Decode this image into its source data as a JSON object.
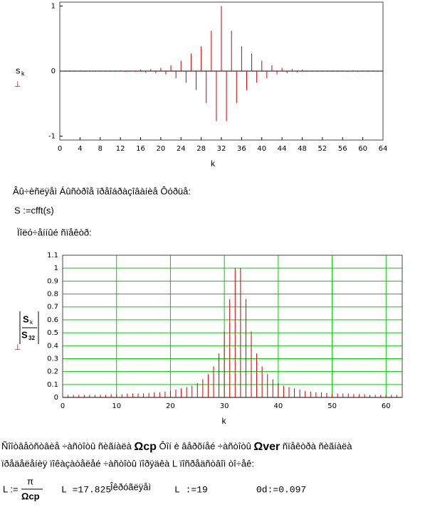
{
  "chart_data": [
    {
      "type": "stem",
      "y_label": "s",
      "y_label_sub": "k",
      "x_label": "k",
      "color": "#cc0000",
      "x": [
        0,
        1,
        2,
        3,
        4,
        5,
        6,
        7,
        8,
        9,
        10,
        11,
        12,
        13,
        14,
        15,
        16,
        17,
        18,
        19,
        20,
        21,
        22,
        23,
        24,
        25,
        26,
        27,
        28,
        29,
        30,
        31,
        32,
        33,
        34,
        35,
        36,
        37,
        38,
        39,
        40,
        41,
        42,
        43,
        44,
        45,
        46,
        47,
        48,
        49,
        50,
        51,
        52,
        53,
        54,
        55,
        56,
        57,
        58,
        59,
        60,
        61,
        62,
        63,
        64
      ],
      "values": [
        0.01,
        -0.01,
        0.01,
        -0.01,
        0.01,
        -0.01,
        0.01,
        -0.01,
        0.01,
        -0.01,
        0.01,
        -0.01,
        0.01,
        -0.01,
        0.01,
        -0.01,
        0.02,
        -0.02,
        0.03,
        -0.03,
        0.05,
        -0.05,
        0.09,
        -0.11,
        0.16,
        -0.18,
        0.27,
        -0.29,
        0.38,
        -0.49,
        0.62,
        -0.77,
        1,
        -0.77,
        0.62,
        -0.49,
        0.38,
        -0.29,
        0.27,
        -0.18,
        0.16,
        -0.11,
        0.09,
        -0.05,
        0.05,
        -0.03,
        0.03,
        -0.02,
        0.02,
        -0.01,
        0.01,
        -0.01,
        0.01,
        -0.01,
        0.01,
        -0.01,
        0.01,
        -0.01,
        0.01,
        -0.01,
        0.01,
        -0.01,
        0.01,
        -0.01,
        0.01
      ],
      "xlim": [
        0,
        64
      ],
      "ylim": [
        -1.06,
        1.06
      ],
      "xticks": [
        0,
        4,
        8,
        12,
        16,
        20,
        24,
        28,
        32,
        36,
        40,
        44,
        48,
        52,
        56,
        60,
        64
      ],
      "yticks": [
        -1,
        0,
        1
      ],
      "grid": false
    },
    {
      "type": "stem",
      "y_label": "S",
      "y_label_sub": "k",
      "y_label_den": "S",
      "y_label_den_sub": "32",
      "x_label": "k",
      "color": "#cc0000",
      "x": [
        0,
        1,
        2,
        3,
        4,
        5,
        6,
        7,
        8,
        9,
        10,
        11,
        12,
        13,
        14,
        15,
        16,
        17,
        18,
        19,
        20,
        21,
        22,
        23,
        24,
        25,
        26,
        27,
        28,
        29,
        30,
        31,
        32,
        33,
        34,
        35,
        36,
        37,
        38,
        39,
        40,
        41,
        42,
        43,
        44,
        45,
        46,
        47,
        48,
        49,
        50,
        51,
        52,
        53,
        54,
        55,
        56,
        57,
        58,
        59,
        60,
        61,
        62,
        63
      ],
      "values": [
        0.02,
        0.02,
        0.02,
        0.02,
        0.02,
        0.02,
        0.02,
        0.02,
        0.02,
        0.025,
        0.025,
        0.025,
        0.03,
        0.03,
        0.03,
        0.03,
        0.035,
        0.04,
        0.04,
        0.045,
        0.05,
        0.06,
        0.07,
        0.08,
        0.09,
        0.11,
        0.14,
        0.18,
        0.24,
        0.34,
        0.51,
        0.76,
        1,
        1,
        0.76,
        0.51,
        0.34,
        0.24,
        0.18,
        0.14,
        0.11,
        0.09,
        0.08,
        0.07,
        0.06,
        0.05,
        0.045,
        0.04,
        0.04,
        0.035,
        0.03,
        0.03,
        0.03,
        0.03,
        0.025,
        0.025,
        0.025,
        0.02,
        0.02,
        0.02,
        0.02,
        0.02,
        0.02,
        0.02
      ],
      "xlim": [
        0,
        63
      ],
      "ylim": [
        0,
        1.1
      ],
      "xticks": [
        0,
        10,
        20,
        30,
        40,
        50,
        60
      ],
      "yticks": [
        0,
        0.1,
        0.2,
        0.3,
        0.4,
        0.5,
        0.6,
        0.7,
        0.8,
        0.9,
        1,
        1.1
      ],
      "grid": true,
      "grid_color": "#00cc00"
    }
  ],
  "text": {
    "fft_intro": "Âû÷èñëÿåì Áûñòðîå ïðåîáðàçîâàíèå Ôóðüå:",
    "fft_formula": "S :=cfft(s)",
    "spectrum_caption": "Ïîëó÷åííûé ñïåêòð:",
    "para_a": "Ñîîòâåòñòâèå ÷àñòîòû ñèãíàëà ",
    "omega_cp": "Ωcp",
    "para_b": " Ôîí è âåðõíåé ÷àñòîòû ",
    "omega_ver": "Ωver",
    "para_c": " ñïåêòðà ñèãíàëà",
    "para_line2": "ïðåäåëåíèÿ ïîêàçàòåëåé ÷àñòîòû ïîðÿäêà L ïîñðåäñòâîì òî÷åê:",
    "formula_lhs": "L :=",
    "formula_num": "π",
    "formula_den": "Ωcp",
    "formula_result": "L =17.825",
    "round_word": "Îêðóãëÿåì",
    "formula_assign": "L :=19",
    "theta": "Θd:=0.097"
  }
}
